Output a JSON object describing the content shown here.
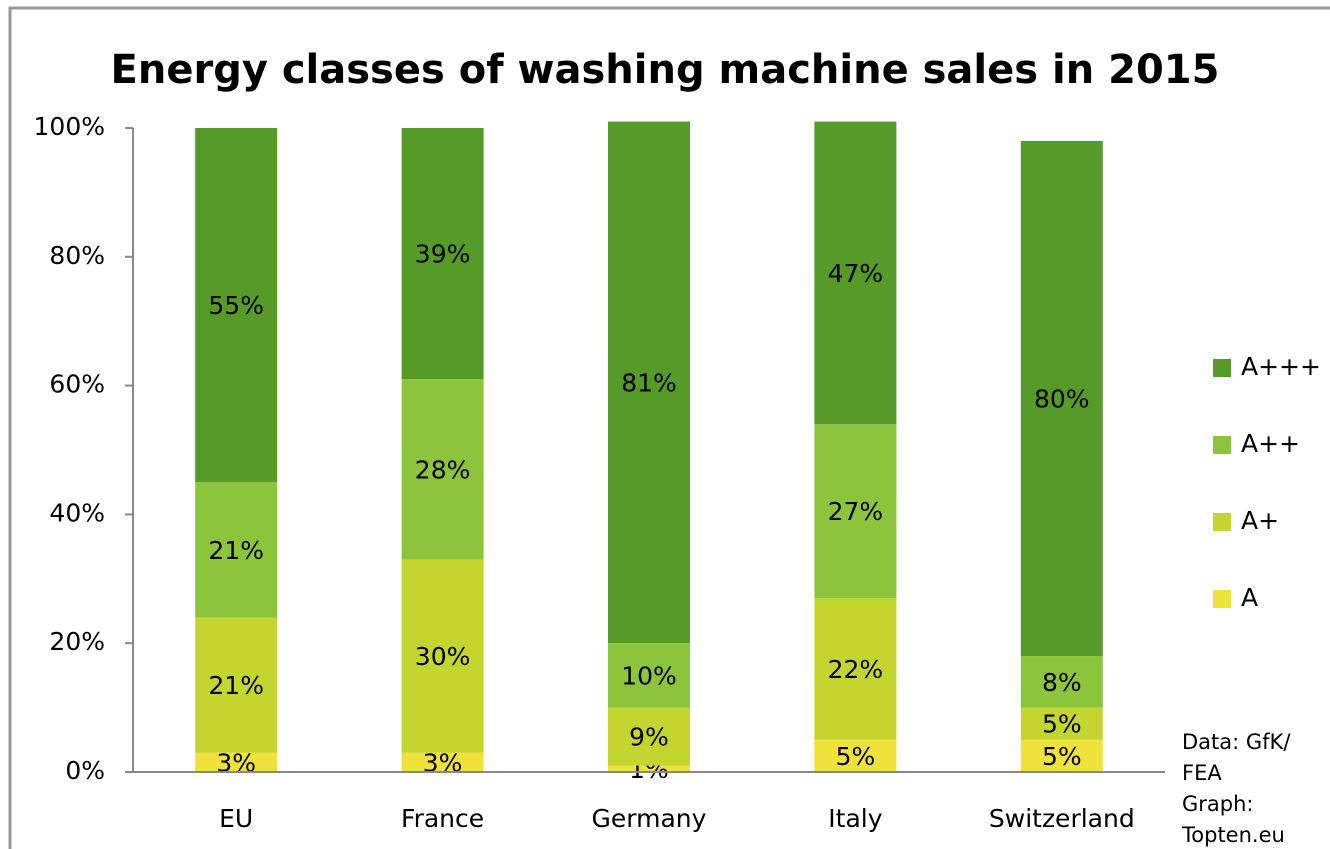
{
  "chart_data": {
    "type": "stacked_bar",
    "title": "Energy classes of washing machine sales in 2015",
    "categories": [
      "EU",
      "France",
      "Germany",
      "Italy",
      "Switzerland"
    ],
    "series": [
      {
        "name": "A",
        "color": "#efe33b",
        "values": [
          3,
          3,
          1,
          5,
          5
        ],
        "value_labels": [
          "3%",
          "3%",
          "1%",
          "5%",
          "5%"
        ]
      },
      {
        "name": "A+",
        "color": "#c5d530",
        "values": [
          21,
          30,
          9,
          22,
          5
        ],
        "value_labels": [
          "21%",
          "30%",
          "9%",
          "22%",
          "5%"
        ]
      },
      {
        "name": "A++",
        "color": "#8cc43b",
        "values": [
          21,
          28,
          10,
          27,
          8
        ],
        "value_labels": [
          "21%",
          "28%",
          "10%",
          "27%",
          "8%"
        ]
      },
      {
        "name": "A+++",
        "color": "#569a27",
        "values": [
          55,
          39,
          81,
          47,
          80
        ],
        "value_labels": [
          "55%",
          "39%",
          "81%",
          "47%",
          "80%"
        ]
      }
    ],
    "ylim": [
      0,
      100
    ],
    "yticks": [
      {
        "value": 0,
        "label": "0%"
      },
      {
        "value": 20,
        "label": "20%"
      },
      {
        "value": 40,
        "label": "40%"
      },
      {
        "value": 60,
        "label": "60%"
      },
      {
        "value": 80,
        "label": "80%"
      },
      {
        "value": 100,
        "label": "100%"
      }
    ],
    "legend": "right",
    "source_lines": [
      "Data: GfK/",
      "FEA",
      "Graph:",
      "Topten.eu"
    ]
  }
}
